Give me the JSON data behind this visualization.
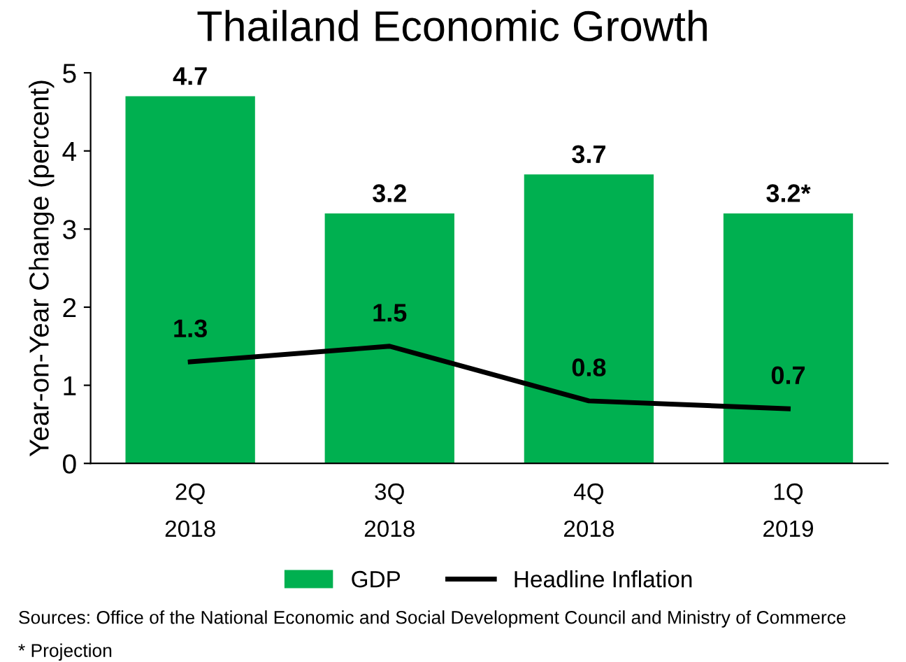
{
  "chart_data": {
    "type": "bar",
    "title": "Thailand Economic Growth",
    "ylabel": "Year-on-Year Change (percent)",
    "categories": [
      "2Q\n2018",
      "3Q\n2018",
      "4Q\n2018",
      "1Q\n2019"
    ],
    "series": [
      {
        "name": "GDP",
        "color": "#00b050",
        "values": [
          4.7,
          3.2,
          3.7,
          3.2
        ],
        "value_labels": [
          "4.7",
          "3.2",
          "3.7",
          "3.2*"
        ]
      },
      {
        "name": "Headline Inflation",
        "type": "line",
        "color": "#000000",
        "values": [
          1.3,
          1.5,
          0.8,
          0.7
        ],
        "value_labels": [
          "1.3",
          "1.5",
          "0.8",
          "0.7"
        ]
      }
    ],
    "ylim": [
      0,
      5
    ],
    "yticks": [
      0,
      1,
      2,
      3,
      4,
      5
    ],
    "grid": false,
    "legend": "bottom",
    "marker": "none",
    "line_style": "solid",
    "annotations": [
      "Sources: Office of the National Economic and Social Development Council and Ministry of Commerce",
      "* Projection"
    ]
  }
}
